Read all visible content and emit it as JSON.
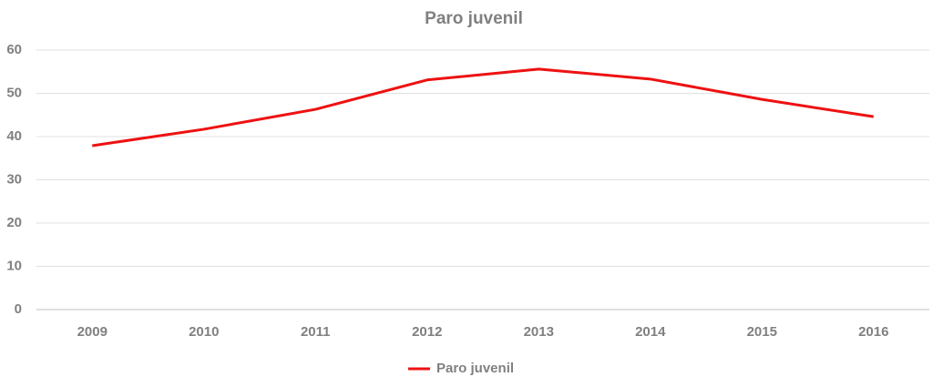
{
  "chart_data": {
    "type": "line",
    "title": "Paro juvenil",
    "categories": [
      "2009",
      "2010",
      "2011",
      "2012",
      "2013",
      "2014",
      "2015",
      "2016"
    ],
    "series": [
      {
        "name": "Paro juvenil",
        "color": "#ee1111",
        "values": [
          37.9,
          41.7,
          46.3,
          53.1,
          55.6,
          53.3,
          48.6,
          44.6
        ]
      }
    ],
    "ylim": [
      0,
      60
    ],
    "yticks": [
      0,
      10,
      20,
      30,
      40,
      50,
      60
    ],
    "grid": true,
    "legend": "bottom"
  }
}
